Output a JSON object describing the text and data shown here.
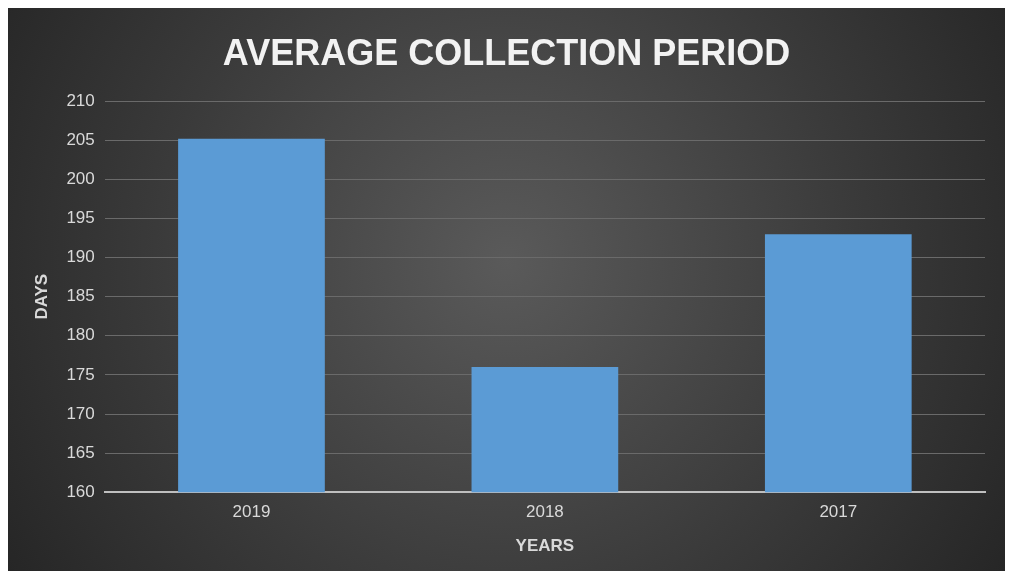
{
  "chart_data": {
    "type": "bar",
    "title": "AVERAGE COLLECTION PERIOD",
    "xlabel": "YEARS",
    "ylabel": "DAYS",
    "categories": [
      "2019",
      "2018",
      "2017"
    ],
    "values": [
      205.2,
      176,
      193
    ],
    "color": "#5b9bd5",
    "ylim": [
      160,
      210
    ],
    "yticks": [
      160,
      165,
      170,
      175,
      180,
      185,
      190,
      195,
      200,
      205,
      210
    ],
    "grid": "y",
    "legend": false
  }
}
